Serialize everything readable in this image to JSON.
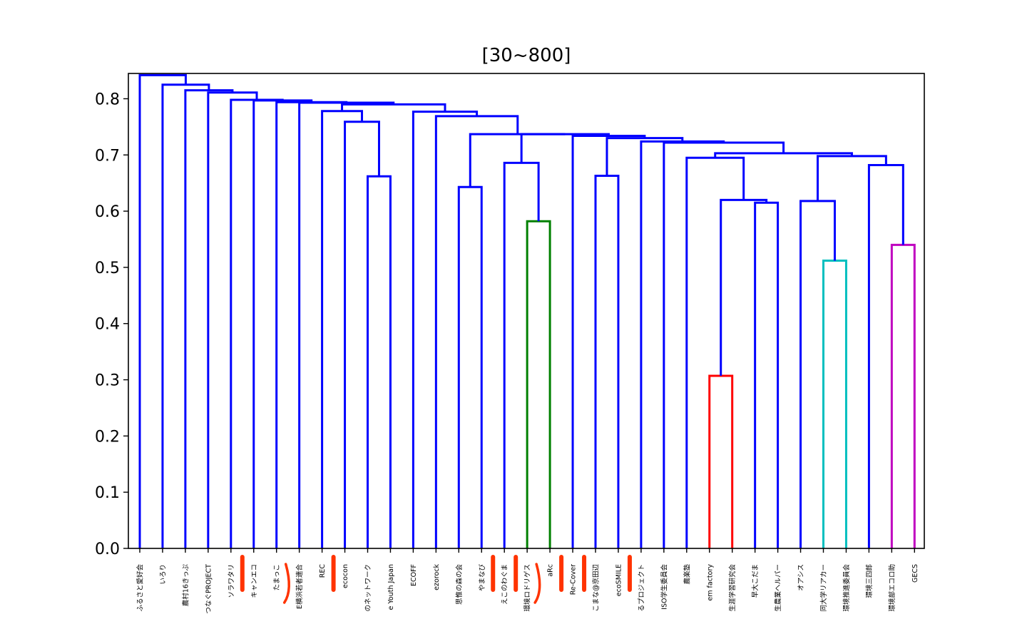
{
  "chart_data": {
    "type": "dendrogram",
    "title": "[30~800]",
    "xlabel": "",
    "ylabel": "",
    "ylim": [
      0,
      0.845
    ],
    "yticks": [
      "0.0",
      "0.1",
      "0.2",
      "0.3",
      "0.4",
      "0.5",
      "0.6",
      "0.7",
      "0.8"
    ],
    "grid": false,
    "legend": "none",
    "leaves": [
      "ふるさと愛好会",
      "いろり",
      "農村16きっぷ",
      "つなぐPROJECT",
      "ソラワタリ",
      "キャンエコ",
      "たまっこ",
      "E横浜若者連合",
      "REC",
      "ecocon",
      "のネットワーク",
      "e Youth Japan",
      "ECOFF",
      "ezorock",
      "思惟の森の会",
      "やまなび",
      "えこのわぐま",
      "環境ロドリゲス",
      "aRc",
      "Re-Cover",
      "こまな@京田辺",
      "ecoSMILE",
      "るプロジェクト",
      "ISO学生委員会",
      "農楽塾",
      "em factory",
      "生涯学習研究会",
      "早大こだま",
      "生農業ヘルパー",
      "オアシス",
      "同大学リアカー",
      "環境推進委員会",
      "環境三四郎",
      "環境部エコロ助",
      "GECS"
    ],
    "merges": [
      {
        "left": 25,
        "right": 26,
        "height": 0.307,
        "color": "#ff0000"
      },
      {
        "left": 30,
        "right": 31,
        "height": 0.512,
        "color": "#00bfbf"
      },
      {
        "left": 33,
        "right": 34,
        "height": 0.54,
        "color": "#bf00bf"
      },
      {
        "left": 17,
        "right": 18,
        "height": 0.582,
        "color": "#008000"
      },
      {
        "left": 27,
        "right": 28,
        "height": 0.615,
        "color": "#0000ff"
      },
      {
        "left": 29,
        "right": "M1",
        "height": 0.618,
        "color": "#0000ff"
      },
      {
        "left": "M0",
        "right": "M4",
        "height": 0.62,
        "color": "#0000ff"
      },
      {
        "left": 14,
        "right": 15,
        "height": 0.643,
        "color": "#0000ff"
      },
      {
        "left": 10,
        "right": 11,
        "height": 0.662,
        "color": "#0000ff"
      },
      {
        "left": 20,
        "right": 21,
        "height": 0.663,
        "color": "#0000ff"
      },
      {
        "left": 32,
        "right": "M2",
        "height": 0.682,
        "color": "#0000ff"
      },
      {
        "left": 16,
        "right": "M3",
        "height": 0.686,
        "color": "#0000ff"
      },
      {
        "left": 24,
        "right": "M6",
        "height": 0.695,
        "color": "#0000ff"
      },
      {
        "left": "M5",
        "right": "M10",
        "height": 0.698,
        "color": "#0000ff"
      },
      {
        "left": "M12",
        "right": "M13",
        "height": 0.703,
        "color": "#0000ff"
      },
      {
        "left": 23,
        "right": "M14",
        "height": 0.722,
        "color": "#0000ff"
      },
      {
        "left": 22,
        "right": "M15",
        "height": 0.724,
        "color": "#0000ff"
      },
      {
        "left": "M9",
        "right": "M16",
        "height": 0.73,
        "color": "#0000ff"
      },
      {
        "left": 19,
        "right": "M17",
        "height": 0.734,
        "color": "#0000ff"
      },
      {
        "left": "M11",
        "right": "M18",
        "height": 0.737,
        "color": "#0000ff"
      },
      {
        "left": "M7",
        "right": "M19",
        "height": 0.737,
        "color": "#0000ff"
      },
      {
        "left": 9,
        "right": "M8",
        "height": 0.759,
        "color": "#0000ff"
      },
      {
        "left": 13,
        "right": "M20",
        "height": 0.769,
        "color": "#0000ff"
      },
      {
        "left": 12,
        "right": "M22",
        "height": 0.777,
        "color": "#0000ff"
      },
      {
        "left": 8,
        "right": "M21",
        "height": 0.778,
        "color": "#0000ff"
      },
      {
        "left": "M24",
        "right": "M23",
        "height": 0.79,
        "color": "#0000ff"
      },
      {
        "left": 7,
        "right": "M25",
        "height": 0.793,
        "color": "#0000ff"
      },
      {
        "left": 6,
        "right": "M26",
        "height": 0.794,
        "color": "#0000ff"
      },
      {
        "left": 5,
        "right": "M27",
        "height": 0.797,
        "color": "#0000ff"
      },
      {
        "left": 4,
        "right": "M28",
        "height": 0.798,
        "color": "#0000ff"
      },
      {
        "left": 3,
        "right": "M29",
        "height": 0.811,
        "color": "#0000ff"
      },
      {
        "left": 2,
        "right": "M30",
        "height": 0.815,
        "color": "#0000ff"
      },
      {
        "left": 1,
        "right": "M31",
        "height": 0.825,
        "color": "#0000ff"
      },
      {
        "left": 0,
        "right": "M32",
        "height": 0.842,
        "color": "#0000ff"
      }
    ],
    "annotations": {
      "marker_color": "#ff3300",
      "bars_after_leaf": [
        4,
        8,
        15,
        16,
        18,
        19,
        21
      ],
      "brackets_after_leaf": [
        6,
        17
      ]
    }
  }
}
